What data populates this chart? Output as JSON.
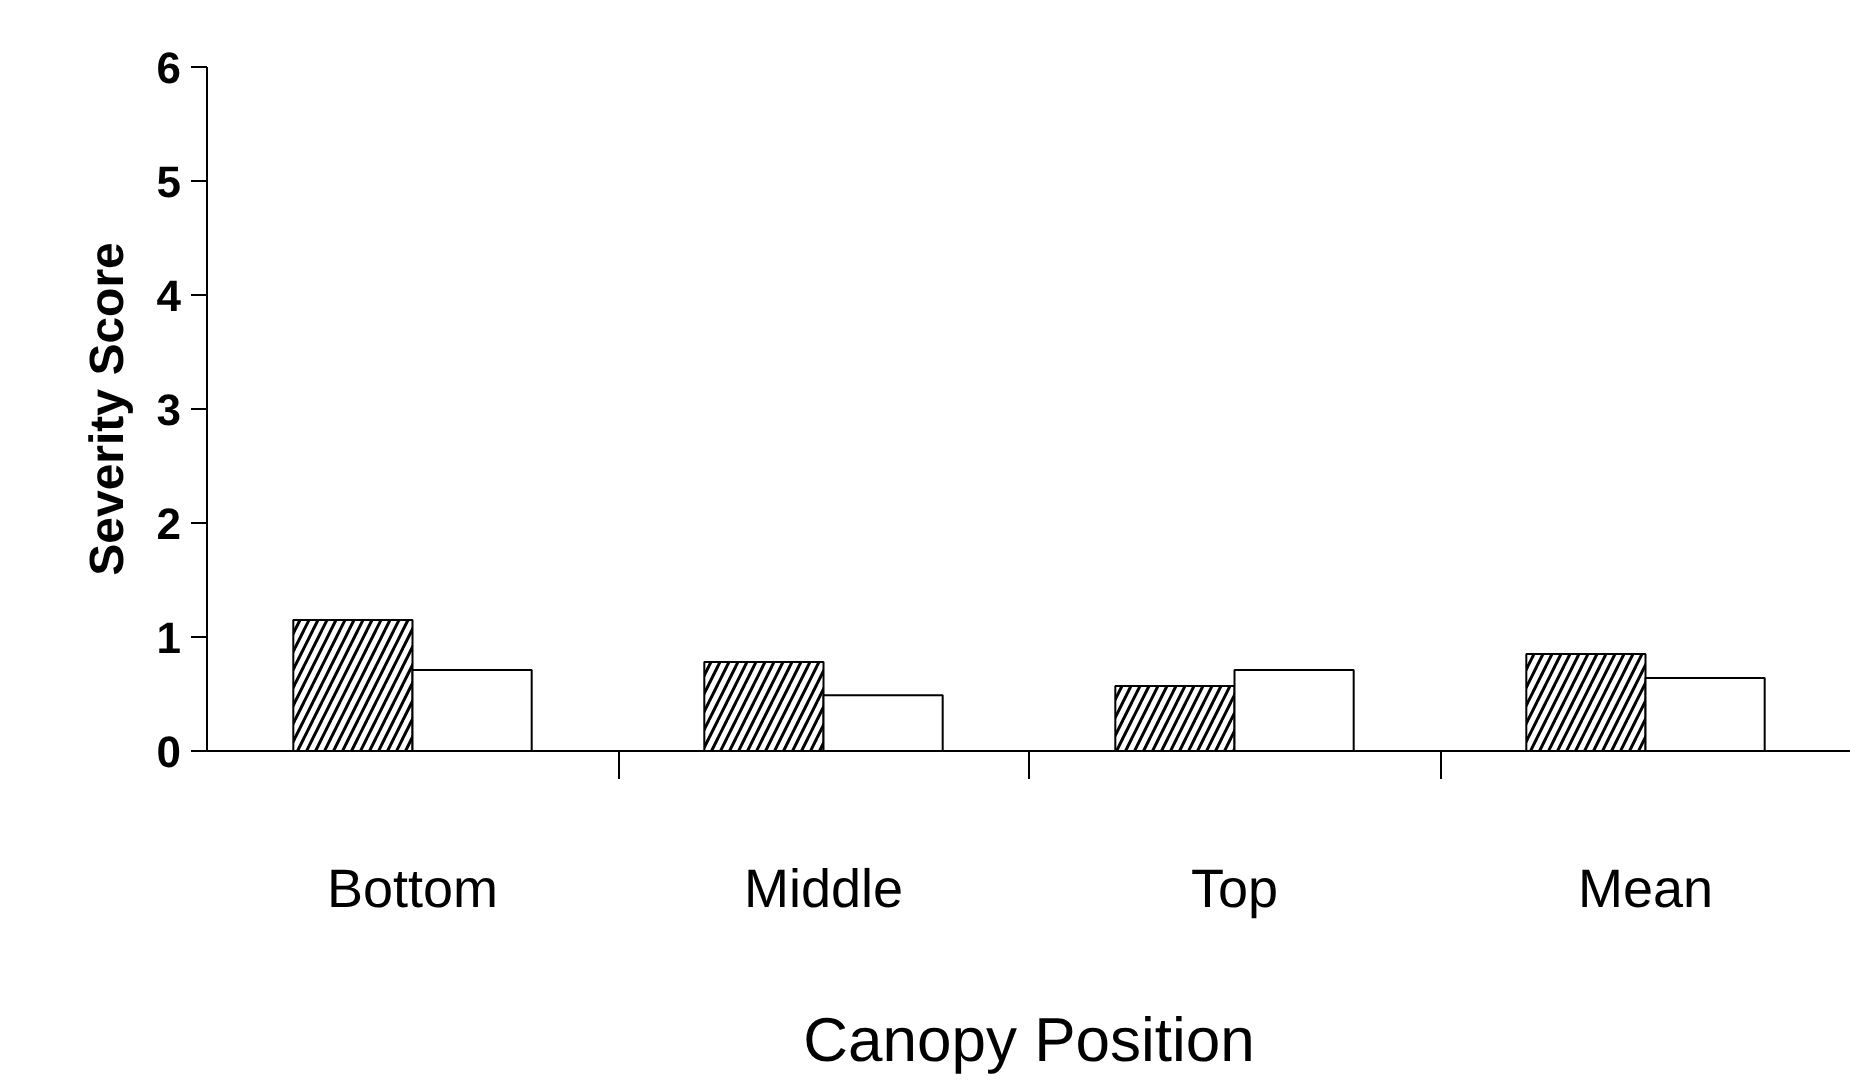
{
  "chart_data": {
    "type": "bar",
    "categories": [
      "Bottom",
      "Middle",
      "Top",
      "Mean"
    ],
    "series": [
      {
        "color": "#000000",
        "values": [
          1.15,
          0.78,
          0.57,
          0.85
        ]
      },
      {
        "color": "#ffffff",
        "values": [
          0.71,
          0.49,
          0.71,
          0.64
        ]
      }
    ],
    "xlabel": "Canopy Position",
    "ylabel": "Severity Score",
    "ylim": [
      0,
      6
    ],
    "yticks": [
      0,
      1,
      2,
      3,
      4,
      5,
      6
    ],
    "grid": false
  }
}
